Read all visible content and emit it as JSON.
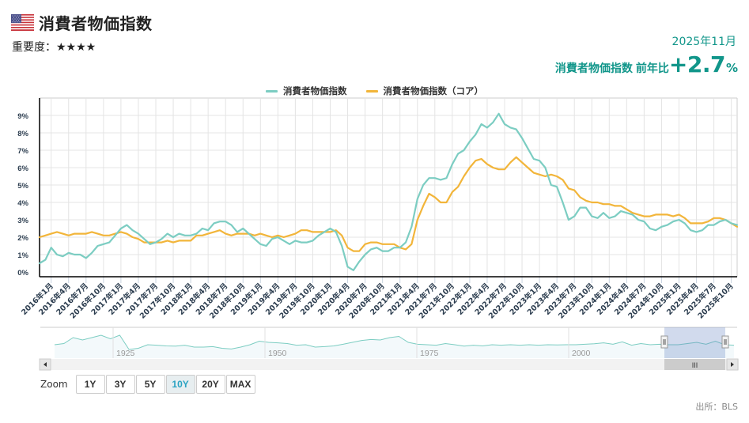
{
  "header": {
    "title": "消費者物価指数",
    "country_flag": "us-flag-icon",
    "importance_label": "重要度：",
    "importance_stars": "★★★★",
    "release_date": "2025年11月",
    "headline_label": "消費者物価指数",
    "headline_compare": "前年比",
    "headline_value": "+2.7",
    "headline_unit": "%"
  },
  "legend": [
    {
      "label": "消費者物価指数",
      "color": "#7ccdc2"
    },
    {
      "label": "消費者物価指数（コア）",
      "color": "#f2b53a"
    }
  ],
  "zoom": {
    "label": "Zoom",
    "buttons": [
      "1Y",
      "3Y",
      "5Y",
      "10Y",
      "20Y",
      "MAX"
    ],
    "active": "10Y"
  },
  "navigator": {
    "year_labels": [
      "1925",
      "1950",
      "1975",
      "2000"
    ],
    "scroll_grip": "III"
  },
  "source": "出所：BLS",
  "chart_data": {
    "type": "line",
    "title": "消費者物価指数",
    "xlabel": "",
    "ylabel": "",
    "ylim": [
      0,
      9
    ],
    "y_ticks": [
      "0%",
      "1%",
      "2%",
      "3%",
      "4%",
      "5%",
      "6%",
      "7%",
      "8%",
      "9%"
    ],
    "grid": true,
    "legend_position": "top",
    "x_start": "2015年11月",
    "x_end": "2025年11月",
    "x_tick_labels": [
      "2016年1月",
      "2016年4月",
      "2016年7月",
      "2016年10月",
      "2017年1月",
      "2017年4月",
      "2017年7月",
      "2017年10月",
      "2018年1月",
      "2018年4月",
      "2018年7月",
      "2018年10月",
      "2019年1月",
      "2019年4月",
      "2019年7月",
      "2019年10月",
      "2020年1月",
      "2020年4月",
      "2020年7月",
      "2020年10月",
      "2021年1月",
      "2021年4月",
      "2021年7月",
      "2021年10月",
      "2022年1月",
      "2022年4月",
      "2022年7月",
      "2022年10月",
      "2023年1月",
      "2023年4月",
      "2023年7月",
      "2023年10月",
      "2024年1月",
      "2024年4月",
      "2024年7月",
      "2024年10月",
      "2025年1月",
      "2025年4月",
      "2025年7月",
      "2025年10月"
    ],
    "series": [
      {
        "name": "消費者物価指数",
        "color": "#7ccdc2",
        "values": [
          0.5,
          0.7,
          1.4,
          1.0,
          0.9,
          1.1,
          1.0,
          1.0,
          0.8,
          1.1,
          1.5,
          1.6,
          1.7,
          2.1,
          2.5,
          2.7,
          2.4,
          2.2,
          1.9,
          1.6,
          1.7,
          1.9,
          2.2,
          2.0,
          2.2,
          2.1,
          2.1,
          2.2,
          2.5,
          2.4,
          2.8,
          2.9,
          2.9,
          2.7,
          2.3,
          2.5,
          2.2,
          1.9,
          1.6,
          1.5,
          1.9,
          2.0,
          1.8,
          1.6,
          1.8,
          1.7,
          1.7,
          1.8,
          2.1,
          2.3,
          2.5,
          2.3,
          1.5,
          0.3,
          0.1,
          0.6,
          1.0,
          1.3,
          1.4,
          1.2,
          1.2,
          1.4,
          1.4,
          1.7,
          2.6,
          4.2,
          5.0,
          5.4,
          5.4,
          5.3,
          5.4,
          6.2,
          6.8,
          7.0,
          7.5,
          7.9,
          8.5,
          8.3,
          8.6,
          9.1,
          8.5,
          8.3,
          8.2,
          7.7,
          7.1,
          6.5,
          6.4,
          6.0,
          5.0,
          4.9,
          4.0,
          3.0,
          3.2,
          3.7,
          3.7,
          3.2,
          3.1,
          3.4,
          3.1,
          3.2,
          3.5,
          3.4,
          3.3,
          3.0,
          2.9,
          2.5,
          2.4,
          2.6,
          2.7,
          2.9,
          3.0,
          2.8,
          2.4,
          2.3,
          2.4,
          2.7,
          2.7,
          2.9,
          3.0,
          2.8,
          2.7
        ],
        "note": "first point 2015年11月, monthly"
      },
      {
        "name": "消費者物価指数（コア）",
        "color": "#f2b53a",
        "values": [
          2.0,
          2.1,
          2.2,
          2.3,
          2.2,
          2.1,
          2.2,
          2.2,
          2.2,
          2.3,
          2.2,
          2.1,
          2.1,
          2.2,
          2.3,
          2.2,
          2.0,
          1.9,
          1.7,
          1.7,
          1.7,
          1.7,
          1.8,
          1.7,
          1.8,
          1.8,
          1.8,
          2.1,
          2.1,
          2.2,
          2.3,
          2.4,
          2.2,
          2.1,
          2.2,
          2.2,
          2.2,
          2.1,
          2.2,
          2.1,
          2.0,
          2.1,
          2.0,
          2.1,
          2.2,
          2.4,
          2.4,
          2.3,
          2.3,
          2.3,
          2.3,
          2.4,
          2.1,
          1.4,
          1.2,
          1.2,
          1.6,
          1.7,
          1.7,
          1.6,
          1.6,
          1.6,
          1.4,
          1.3,
          1.6,
          3.0,
          3.8,
          4.5,
          4.3,
          4.0,
          4.0,
          4.6,
          4.9,
          5.5,
          6.0,
          6.4,
          6.5,
          6.2,
          6.0,
          5.9,
          5.9,
          6.3,
          6.6,
          6.3,
          6.0,
          5.7,
          5.6,
          5.5,
          5.6,
          5.5,
          5.3,
          4.8,
          4.7,
          4.3,
          4.1,
          4.0,
          4.0,
          3.9,
          3.9,
          3.8,
          3.8,
          3.6,
          3.4,
          3.3,
          3.2,
          3.2,
          3.3,
          3.3,
          3.3,
          3.2,
          3.3,
          3.1,
          2.8,
          2.8,
          2.8,
          2.9,
          3.1,
          3.1,
          3.0,
          2.8,
          2.6
        ]
      }
    ]
  }
}
